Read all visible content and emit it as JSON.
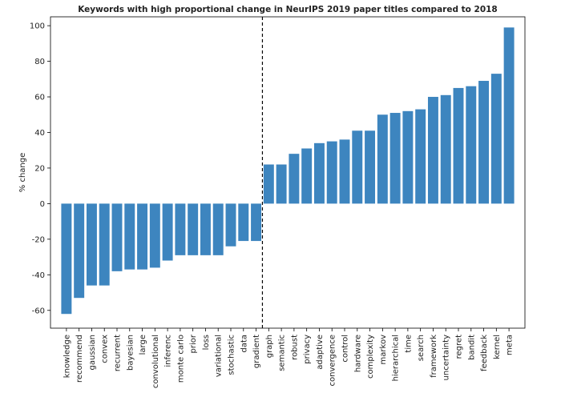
{
  "chart_data": {
    "type": "bar",
    "title": "Keywords with high proportional change in NeurIPS 2019 paper titles compared to 2018",
    "xlabel": "",
    "ylabel": "% change",
    "ylim": [
      -70,
      105
    ],
    "yticks": [
      -60,
      -40,
      -20,
      0,
      20,
      40,
      60,
      80,
      100
    ],
    "grid": false,
    "bar_color": "#3d85bf",
    "divider_after_category": "gradient",
    "categories": [
      "knowledge",
      "recommend",
      "gaussian",
      "convex",
      "recurrent",
      "bayesian",
      "large",
      "convolutional",
      "inferenc",
      "monte carlo",
      "prior",
      "loss",
      "variational",
      "stochastic",
      "data",
      "gradient",
      "graph",
      "semantic",
      "robust",
      "privacy",
      "adaptive",
      "convergence",
      "control",
      "hardware",
      "complexity",
      "markov",
      "hierarchical",
      "time",
      "search",
      "framework",
      "uncertainty",
      "regret",
      "bandit",
      "feedback",
      "kernel",
      "meta"
    ],
    "values": [
      -62,
      -53,
      -46,
      -46,
      -38,
      -37,
      -37,
      -36,
      -32,
      -29,
      -29,
      -29,
      -29,
      -24,
      -21,
      -21,
      22,
      22,
      28,
      31,
      34,
      35,
      36,
      41,
      41,
      50,
      51,
      52,
      53,
      60,
      61,
      65,
      66,
      69,
      73,
      99
    ]
  }
}
